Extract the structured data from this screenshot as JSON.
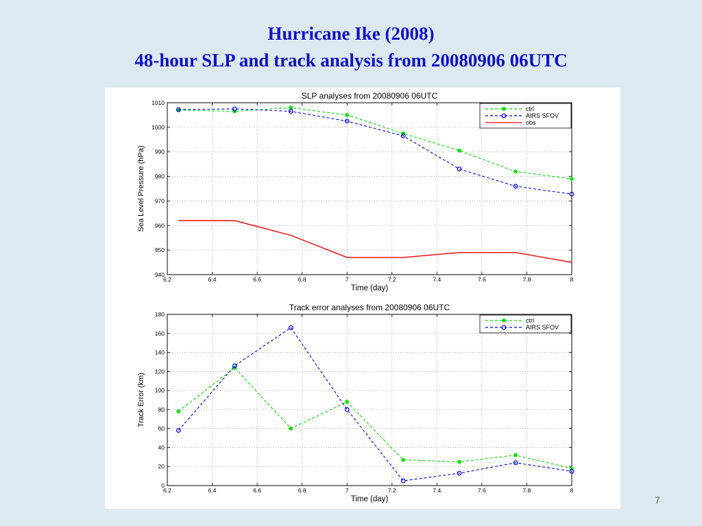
{
  "slide": {
    "title_line1": "Hurricane Ike (2008)",
    "title_line2": "48-hour SLP and track analysis from 20080906 06UTC",
    "page_number": "7",
    "title_color": "#1010c8",
    "background_color": "#dce9f0"
  },
  "chart_data": [
    {
      "type": "line",
      "title": "SLP analyses from 20080906 06UTC",
      "xlabel": "Time (day)",
      "ylabel": "Sea Level Pressure (hPa)",
      "xlim": [
        6.2,
        8
      ],
      "ylim": [
        940,
        1010
      ],
      "xticks": [
        "6.2",
        "6.4",
        "6.6",
        "6.8",
        "7",
        "7.2",
        "7.4",
        "7.6",
        "7.8",
        "8"
      ],
      "yticks": [
        "940",
        "950",
        "960",
        "970",
        "980",
        "990",
        "1000",
        "1010"
      ],
      "grid": true,
      "legend_position": "top-right",
      "series": [
        {
          "name": "ctrl",
          "color": "#00dd00",
          "style": "dashed",
          "marker": "star",
          "x": [
            6.25,
            6.5,
            6.75,
            7,
            7.25,
            7.5,
            7.75,
            8
          ],
          "values": [
            1007,
            1006.5,
            1008,
            1005,
            997.5,
            990.5,
            982,
            979
          ]
        },
        {
          "name": "AIRS SFOV",
          "color": "#0000ee",
          "style": "dashed",
          "marker": "circle",
          "x": [
            6.25,
            6.5,
            6.75,
            7,
            7.25,
            7.5,
            7.75,
            8
          ],
          "values": [
            1007.2,
            1007.5,
            1006.5,
            1002.5,
            996.5,
            983,
            976,
            972.8
          ]
        },
        {
          "name": "obs",
          "color": "#ee0000",
          "style": "solid",
          "marker": "none",
          "x": [
            6.25,
            6.5,
            6.75,
            7,
            7.25,
            7.5,
            7.75,
            8
          ],
          "values": [
            962,
            962,
            956,
            947,
            947,
            949,
            949,
            945
          ]
        }
      ]
    },
    {
      "type": "line",
      "title": "Track error analyses from 20080906 06UTC",
      "xlabel": "Time (day)",
      "ylabel": "Track Error (km)",
      "xlim": [
        6.2,
        8
      ],
      "ylim": [
        0,
        180
      ],
      "xticks": [
        "6.2",
        "6.4",
        "6.6",
        "6.8",
        "7",
        "7.2",
        "7.4",
        "7.6",
        "7.8",
        "8"
      ],
      "yticks": [
        "0",
        "20",
        "40",
        "60",
        "80",
        "100",
        "120",
        "140",
        "160",
        "180"
      ],
      "grid": true,
      "legend_position": "top-right",
      "series": [
        {
          "name": "ctrl",
          "color": "#00dd00",
          "style": "dashed",
          "marker": "star",
          "x": [
            6.25,
            6.5,
            6.75,
            7,
            7.25,
            7.5,
            7.75,
            8
          ],
          "values": [
            78,
            124,
            60,
            88,
            27,
            25,
            32,
            18
          ]
        },
        {
          "name": "AIRS SFOV",
          "color": "#0000ee",
          "style": "dashed",
          "marker": "circle",
          "x": [
            6.25,
            6.5,
            6.75,
            7,
            7.25,
            7.5,
            7.75,
            8
          ],
          "values": [
            58,
            126,
            166,
            80,
            5,
            13,
            24,
            15
          ]
        }
      ]
    }
  ]
}
